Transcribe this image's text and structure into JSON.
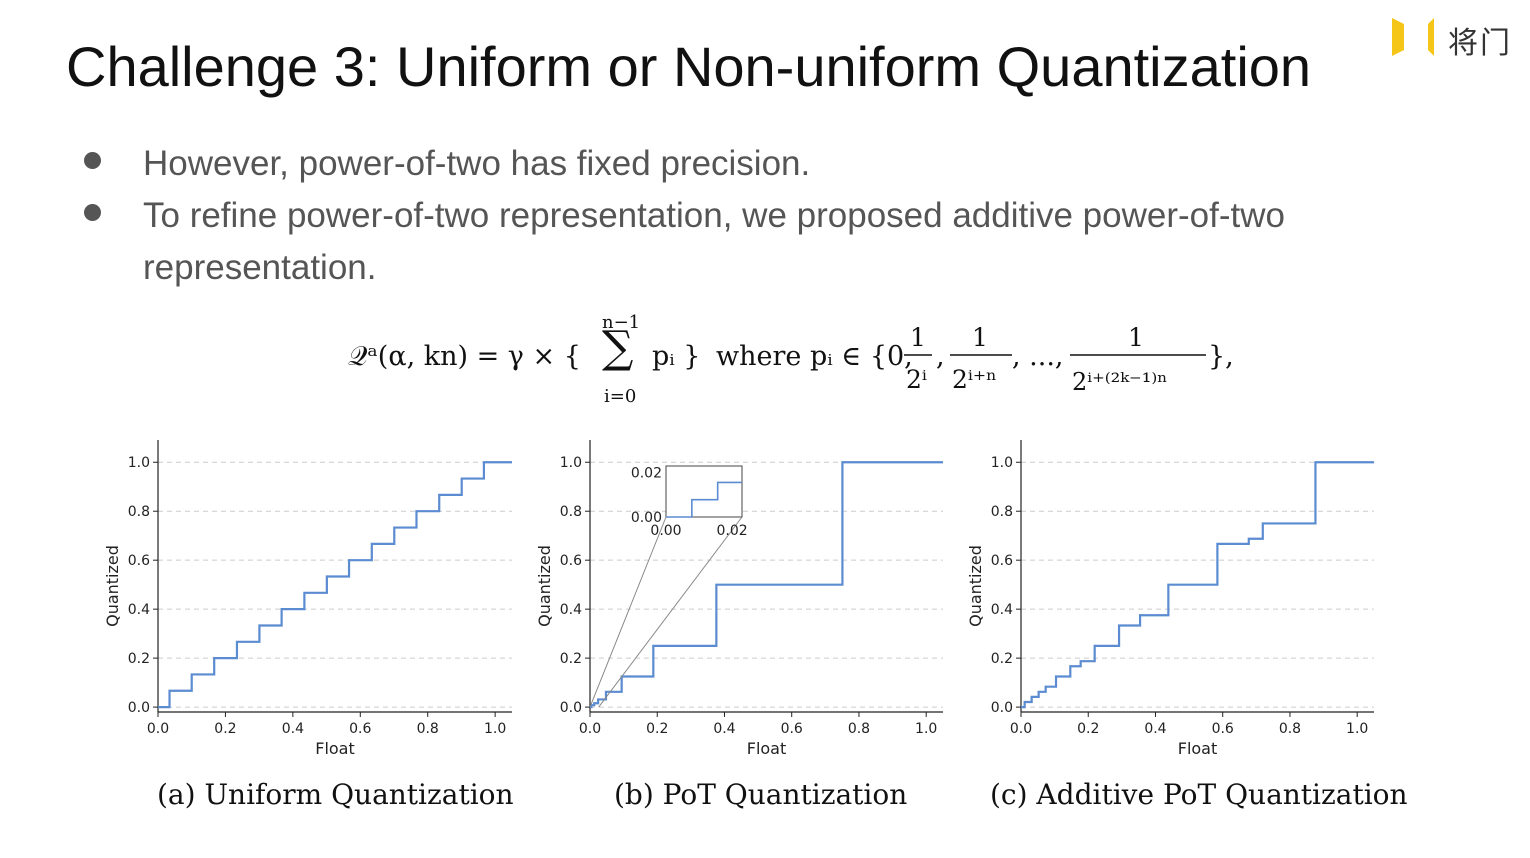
{
  "slide": {
    "title": "Challenge 3: Uniform or Non-uniform Quantization",
    "logo_text": "将门",
    "bullets": [
      "However, power-of-two has fixed precision.",
      "To refine power-of-two representation, we proposed additive power-of-two",
      "representation."
    ],
    "formula": {
      "lhs": "𝒬ᵃ(α, kn) = γ × {",
      "sum_top": "n−1",
      "sum_bottom": "i=0",
      "term": "pᵢ }",
      "where": "where pᵢ ∈ {0,",
      "frac1_den": "2ⁱ",
      "frac2_den": "2ⁱ⁺ⁿ",
      "ellipsis": ", ...,",
      "frac3_den": "2ⁱ⁺⁽²ᵏ⁻¹⁾ⁿ",
      "numerator": "1",
      "close": "},"
    },
    "captions": [
      "(a) Uniform Quantization",
      "(b) PoT Quantization",
      "(c) Additive PoT Quantization"
    ]
  },
  "colors": {
    "line": "#5b8bd0",
    "grid": "#cccccc",
    "axis": "#222222"
  },
  "chart_data": [
    {
      "type": "line",
      "step": true,
      "xlabel": "Float",
      "ylabel": "Quantized",
      "xlim": [
        0.0,
        1.05
      ],
      "ylim": [
        -0.02,
        1.05
      ],
      "xticks": [
        "0.0",
        "0.2",
        "0.4",
        "0.6",
        "0.8",
        "1.0"
      ],
      "yticks": [
        "0.0",
        "0.2",
        "0.4",
        "0.6",
        "0.8",
        "1.0"
      ],
      "grid": "horizontal dashed",
      "levels": [
        0.0,
        0.0667,
        0.1333,
        0.2,
        0.2667,
        0.3333,
        0.4,
        0.4667,
        0.5333,
        0.6,
        0.6667,
        0.7333,
        0.8,
        0.8667,
        0.9333,
        1.0
      ]
    },
    {
      "type": "line",
      "step": true,
      "xlabel": "Float",
      "ylabel": "Quantized",
      "xlim": [
        0.0,
        1.05
      ],
      "ylim": [
        -0.02,
        1.05
      ],
      "xticks": [
        "0.0",
        "0.2",
        "0.4",
        "0.6",
        "0.8",
        "1.0"
      ],
      "yticks": [
        "0.0",
        "0.2",
        "0.4",
        "0.6",
        "0.8",
        "1.0"
      ],
      "grid": "horizontal dashed",
      "levels": [
        0.0,
        0.0078,
        0.0156,
        0.0313,
        0.0625,
        0.125,
        0.25,
        0.5,
        1.0
      ],
      "inset": {
        "xticks": [
          "0.00",
          "0.02"
        ],
        "yticks": [
          "0.00",
          "0.02"
        ],
        "xlim": [
          0.0,
          0.023
        ],
        "ylim": [
          0.0,
          0.023
        ]
      }
    },
    {
      "type": "line",
      "step": true,
      "xlabel": "Float",
      "ylabel": "Quantized",
      "xlim": [
        0.0,
        1.05
      ],
      "ylim": [
        -0.02,
        1.05
      ],
      "xticks": [
        "0.0",
        "0.2",
        "0.4",
        "0.6",
        "0.8",
        "1.0"
      ],
      "yticks": [
        "0.0",
        "0.2",
        "0.4",
        "0.6",
        "0.8",
        "1.0"
      ],
      "grid": "horizontal dashed",
      "levels": [
        0.0,
        0.0208,
        0.0417,
        0.0625,
        0.0833,
        0.125,
        0.1667,
        0.1875,
        0.25,
        0.3333,
        0.375,
        0.5,
        0.6667,
        0.6875,
        0.75,
        1.0
      ]
    }
  ]
}
